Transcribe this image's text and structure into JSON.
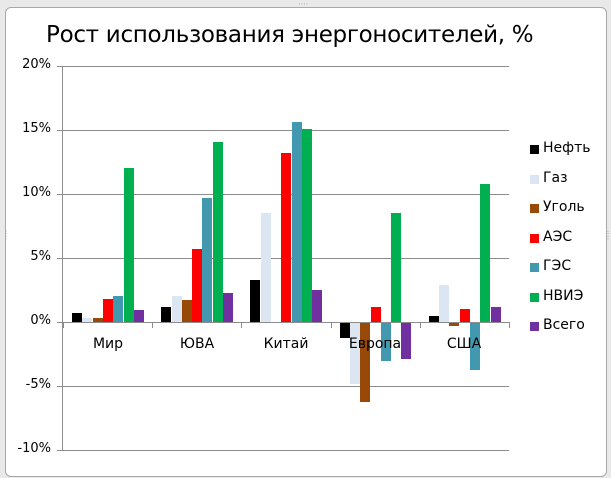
{
  "chart_data": {
    "type": "bar",
    "title": "Рост использования энергоносителей, %",
    "xlabel": "",
    "ylabel": "",
    "ylim": [
      -10,
      20
    ],
    "yticks": [
      "20%",
      "15%",
      "10%",
      "5%",
      "0%",
      "-5%",
      "-10%"
    ],
    "ytick_values": [
      20,
      15,
      10,
      5,
      0,
      -5,
      -10
    ],
    "grid": true,
    "legend_position": "right",
    "categories": [
      "Мир",
      "ЮВА",
      "Китай",
      "Европа",
      "США"
    ],
    "series": [
      {
        "name": "Нефть",
        "color": "#000000",
        "values": [
          0.7,
          1.2,
          3.3,
          -1.2,
          0.5
        ]
      },
      {
        "name": "Газ",
        "color": "#dce6f2",
        "values": [
          0.3,
          2.0,
          8.5,
          -4.8,
          2.9
        ]
      },
      {
        "name": "Уголь",
        "color": "#984807",
        "values": [
          0.3,
          1.7,
          0.0,
          -6.2,
          -0.2
        ]
      },
      {
        "name": "АЭС",
        "color": "#ff0000",
        "values": [
          1.8,
          5.7,
          13.2,
          1.2,
          1.0
        ]
      },
      {
        "name": "ГЭС",
        "color": "#4198af",
        "values": [
          2.0,
          9.7,
          15.6,
          -3.0,
          -3.7
        ]
      },
      {
        "name": "НВИЭ",
        "color": "#00b050",
        "values": [
          12.0,
          14.1,
          15.1,
          8.5,
          10.8
        ]
      },
      {
        "name": "Всего",
        "color": "#7030a0",
        "values": [
          0.9,
          2.3,
          2.5,
          -2.8,
          1.2
        ]
      }
    ]
  }
}
